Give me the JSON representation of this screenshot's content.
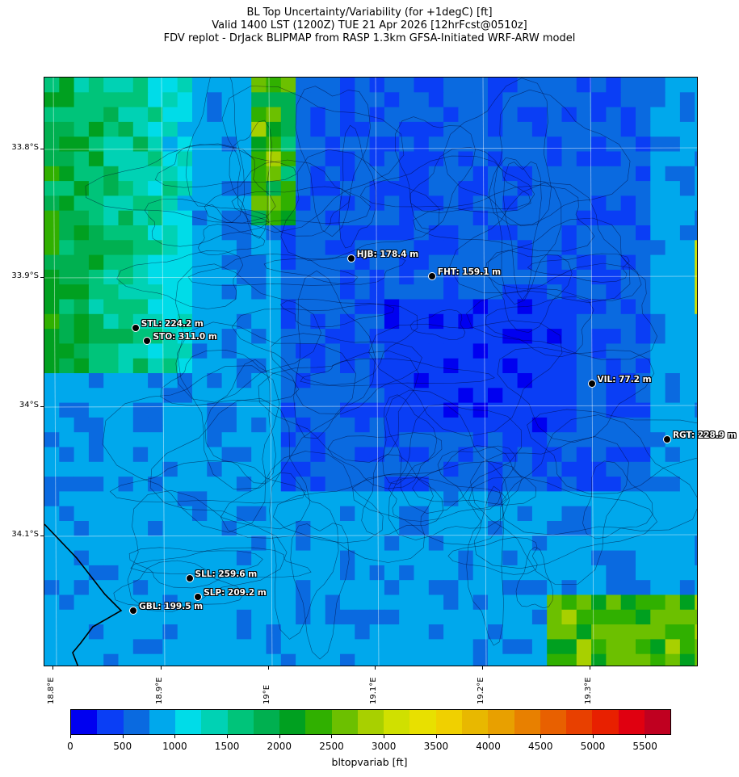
{
  "title": {
    "line1": "BL Top Uncertainty/Variability (for +1degC) [ft]",
    "line2": "Valid 1400 LST (1200Z) TUE 21 Apr 2026 [12hrFcst@0510z]",
    "line3": "FDV replot - DrJack BLIPMAP from RASP 1.3km GFSA-Initiated WRF-ARW model"
  },
  "lat_labels": [
    "33.8°S",
    "33.9°S",
    "34°S",
    "34.1°S"
  ],
  "lon_labels": [
    "18.8°E",
    "18.9°E",
    "19°E",
    "19.1°E",
    "19.2°E",
    "19.3°E"
  ],
  "stations": [
    {
      "label": "HJB: 178.4 m",
      "lat": -33.885,
      "lon": 19.077
    },
    {
      "label": "FHT: 159.1 m",
      "lat": -33.899,
      "lon": 19.152
    },
    {
      "label": "STL: 224.2 m",
      "lat": -33.939,
      "lon": 18.877
    },
    {
      "label": "STO: 311.0 m",
      "lat": -33.949,
      "lon": 18.888
    },
    {
      "label": "VIL: 77.2 m",
      "lat": -33.982,
      "lon": 19.3
    },
    {
      "label": "RGT: 228.9 m",
      "lat": -34.025,
      "lon": 19.37
    },
    {
      "label": "SLL: 259.6 m",
      "lat": -34.133,
      "lon": 18.927
    },
    {
      "label": "SLP: 209.2 m",
      "lat": -34.147,
      "lon": 18.935
    },
    {
      "label": "GBL: 199.5 m",
      "lat": -34.158,
      "lon": 18.875
    }
  ],
  "colorbar": {
    "label": "bltopvariab [ft]",
    "ticks": [
      "0",
      "500",
      "1000",
      "1500",
      "2000",
      "2500",
      "3000",
      "3500",
      "4000",
      "4500",
      "5000",
      "5500"
    ],
    "colors": [
      "#0000f0",
      "#0a3ef5",
      "#0a6ae0",
      "#00a8ec",
      "#00dce8",
      "#00d2b4",
      "#00c47a",
      "#00b050",
      "#00a020",
      "#30b000",
      "#6cc000",
      "#a8d000",
      "#d0e000",
      "#e8e000",
      "#f0d000",
      "#e8b800",
      "#e8a000",
      "#e88000",
      "#e86000",
      "#e84000",
      "#e82000",
      "#e00010",
      "#c00020"
    ]
  }
}
